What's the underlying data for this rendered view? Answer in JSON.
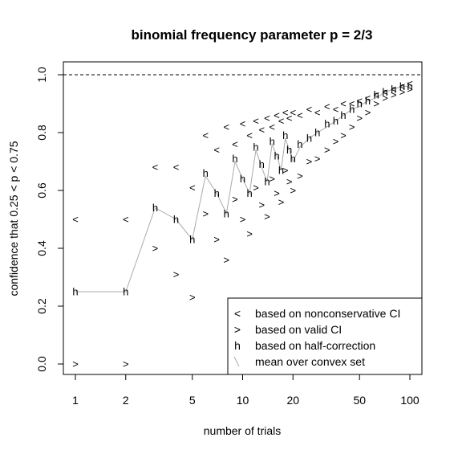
{
  "chart_data": {
    "type": "scatter",
    "title": "binomial frequency parameter p = 2/3",
    "xlabel": "number of trials",
    "ylabel": "confidence that 0.25 < p < 0.75",
    "x_scale": "log",
    "xlim": [
      1,
      100
    ],
    "ylim": [
      0,
      1
    ],
    "x_ticks": [
      "1",
      "2",
      "5",
      "10",
      "20",
      "50",
      "100"
    ],
    "y_ticks": [
      "0.0",
      "0.2",
      "0.4",
      "0.6",
      "0.8",
      "1.0"
    ],
    "reference_line": {
      "y": 1.0,
      "style": "dashed"
    },
    "legend": {
      "position": "bottom-right",
      "entries": [
        {
          "symbol": "<",
          "label": "based on nonconservative CI"
        },
        {
          "symbol": ">",
          "label": "based on valid CI"
        },
        {
          "symbol": "h",
          "label": "based on half-correction"
        },
        {
          "symbol": "\\",
          "label": "mean over convex set"
        }
      ]
    },
    "series": [
      {
        "symbol": "<",
        "x": [
          1,
          2,
          3,
          4,
          5,
          6,
          7,
          8,
          9,
          10,
          11,
          12,
          13,
          14,
          15,
          16,
          17,
          18,
          19,
          20,
          22,
          25,
          28,
          32,
          36,
          40,
          45,
          50,
          56,
          63,
          71,
          80,
          90,
          100
        ],
        "y": [
          0.5,
          0.5,
          0.68,
          0.68,
          0.61,
          0.79,
          0.74,
          0.82,
          0.76,
          0.83,
          0.79,
          0.84,
          0.81,
          0.85,
          0.82,
          0.86,
          0.84,
          0.87,
          0.85,
          0.87,
          0.86,
          0.88,
          0.87,
          0.89,
          0.88,
          0.9,
          0.9,
          0.91,
          0.92,
          0.93,
          0.94,
          0.95,
          0.96,
          0.97
        ]
      },
      {
        "symbol": ">",
        "x": [
          1,
          2,
          3,
          4,
          5,
          6,
          7,
          8,
          9,
          10,
          11,
          12,
          13,
          14,
          15,
          16,
          17,
          18,
          19,
          20,
          22,
          25,
          28,
          32,
          36,
          40,
          45,
          50,
          56,
          63,
          71,
          80,
          90,
          100
        ],
        "y": [
          0.0,
          0.0,
          0.4,
          0.31,
          0.23,
          0.52,
          0.43,
          0.36,
          0.57,
          0.5,
          0.45,
          0.61,
          0.55,
          0.51,
          0.64,
          0.59,
          0.56,
          0.67,
          0.63,
          0.6,
          0.65,
          0.7,
          0.71,
          0.74,
          0.77,
          0.79,
          0.82,
          0.85,
          0.87,
          0.9,
          0.92,
          0.93,
          0.94,
          0.95
        ]
      },
      {
        "symbol": "h",
        "x": [
          1,
          2,
          3,
          4,
          5,
          6,
          7,
          8,
          9,
          10,
          11,
          12,
          13,
          14,
          15,
          16,
          17,
          18,
          19,
          20,
          22,
          25,
          28,
          32,
          36,
          40,
          45,
          50,
          56,
          63,
          71,
          80,
          90,
          100
        ],
        "y": [
          0.25,
          0.25,
          0.54,
          0.5,
          0.43,
          0.66,
          0.59,
          0.52,
          0.71,
          0.64,
          0.59,
          0.75,
          0.69,
          0.63,
          0.77,
          0.72,
          0.67,
          0.79,
          0.74,
          0.71,
          0.76,
          0.78,
          0.8,
          0.83,
          0.84,
          0.86,
          0.88,
          0.9,
          0.91,
          0.93,
          0.94,
          0.95,
          0.96,
          0.96
        ]
      },
      {
        "symbol": "\\",
        "name": "mean over convex set",
        "x": [
          1,
          2,
          3,
          4,
          5,
          6,
          7,
          8,
          9,
          10,
          11,
          12,
          13,
          14,
          15,
          16,
          17,
          18,
          19,
          20,
          22,
          25,
          28,
          32,
          36,
          40,
          45,
          50,
          56,
          63,
          71,
          80,
          90,
          100
        ],
        "y": [
          0.25,
          0.25,
          0.54,
          0.5,
          0.43,
          0.65,
          0.59,
          0.52,
          0.7,
          0.64,
          0.59,
          0.74,
          0.68,
          0.63,
          0.76,
          0.72,
          0.67,
          0.78,
          0.74,
          0.7,
          0.75,
          0.78,
          0.8,
          0.82,
          0.84,
          0.86,
          0.88,
          0.89,
          0.91,
          0.92,
          0.94,
          0.95,
          0.96,
          0.96
        ]
      }
    ]
  }
}
